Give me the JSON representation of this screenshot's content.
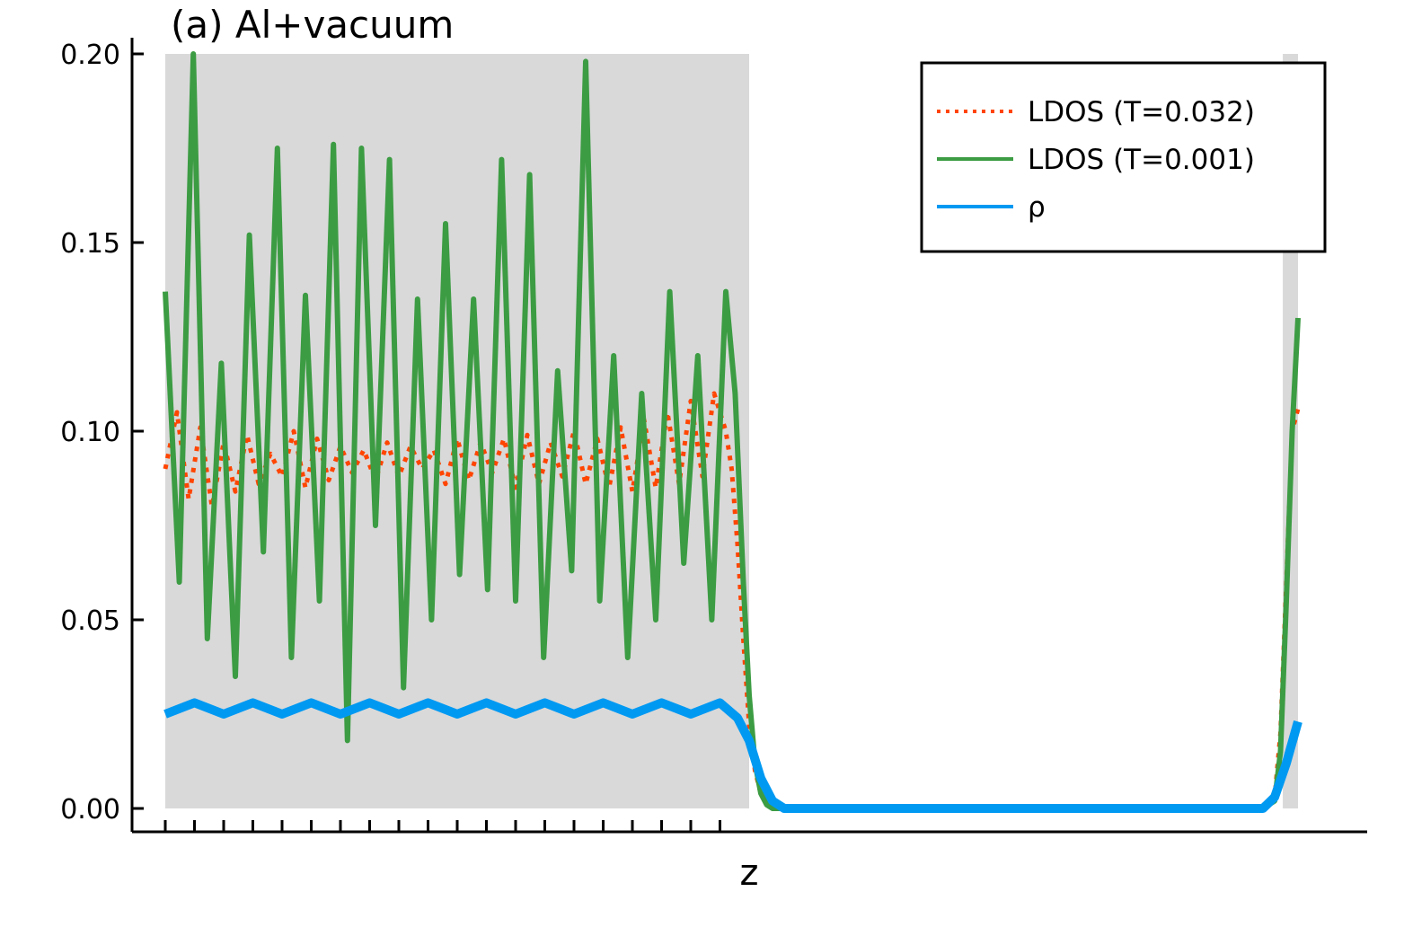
{
  "chart_data": {
    "type": "line",
    "title": "(a) Al+vacuum",
    "xlabel": "z",
    "ylabel": "",
    "xlim": [
      0,
      1.0
    ],
    "ylim": [
      0.0,
      0.2
    ],
    "yticks": [
      "0.00",
      "0.05",
      "0.10",
      "0.15",
      "0.20"
    ],
    "ytick_values": [
      0.0,
      0.05,
      0.1,
      0.15,
      0.2
    ],
    "grid": false,
    "legend_position": "top-right",
    "shaded_regions": [
      {
        "x0": 0.0,
        "x1": 0.5,
        "color": "#d9d9d9"
      },
      {
        "x0": 0.957,
        "x1": 0.97,
        "color": "#d9d9d9"
      }
    ],
    "series": [
      {
        "name": "LDOS (T=0.032)",
        "color": "#ff4500",
        "style": "dotted",
        "x": [
          0.0,
          0.01,
          0.02,
          0.03,
          0.04,
          0.05,
          0.06,
          0.07,
          0.08,
          0.09,
          0.1,
          0.11,
          0.12,
          0.13,
          0.14,
          0.15,
          0.16,
          0.17,
          0.18,
          0.19,
          0.2,
          0.21,
          0.22,
          0.23,
          0.24,
          0.25,
          0.26,
          0.27,
          0.28,
          0.29,
          0.3,
          0.31,
          0.32,
          0.33,
          0.34,
          0.35,
          0.36,
          0.37,
          0.38,
          0.39,
          0.4,
          0.41,
          0.42,
          0.43,
          0.44,
          0.45,
          0.46,
          0.47,
          0.48,
          0.485,
          0.49,
          0.495,
          0.5,
          0.505,
          0.51,
          0.515,
          0.52,
          0.53,
          0.55,
          0.6,
          0.7,
          0.8,
          0.9,
          0.94,
          0.95,
          0.955,
          0.96,
          0.965,
          0.97
        ],
        "y": [
          0.09,
          0.105,
          0.082,
          0.101,
          0.08,
          0.097,
          0.084,
          0.099,
          0.086,
          0.094,
          0.088,
          0.1,
          0.085,
          0.098,
          0.087,
          0.096,
          0.089,
          0.095,
          0.087,
          0.097,
          0.088,
          0.096,
          0.09,
          0.095,
          0.086,
          0.098,
          0.087,
          0.097,
          0.089,
          0.098,
          0.085,
          0.099,
          0.086,
          0.097,
          0.088,
          0.1,
          0.086,
          0.098,
          0.085,
          0.101,
          0.084,
          0.103,
          0.085,
          0.105,
          0.086,
          0.108,
          0.088,
          0.11,
          0.1,
          0.09,
          0.07,
          0.045,
          0.022,
          0.01,
          0.004,
          0.001,
          0.0,
          0.0,
          0.0,
          0.0,
          0.0,
          0.0,
          0.0,
          0.0,
          0.003,
          0.02,
          0.06,
          0.1,
          0.106
        ]
      },
      {
        "name": "LDOS (T=0.001)",
        "color": "#3c9c43",
        "style": "solid",
        "x": [
          0.0,
          0.012,
          0.024,
          0.036,
          0.048,
          0.06,
          0.072,
          0.084,
          0.096,
          0.108,
          0.12,
          0.132,
          0.144,
          0.156,
          0.168,
          0.18,
          0.192,
          0.204,
          0.216,
          0.228,
          0.24,
          0.252,
          0.264,
          0.276,
          0.288,
          0.3,
          0.312,
          0.324,
          0.336,
          0.348,
          0.36,
          0.372,
          0.384,
          0.396,
          0.408,
          0.42,
          0.432,
          0.444,
          0.456,
          0.468,
          0.48,
          0.488,
          0.495,
          0.5,
          0.505,
          0.51,
          0.515,
          0.52,
          0.53,
          0.55,
          0.6,
          0.7,
          0.8,
          0.9,
          0.94,
          0.95,
          0.955,
          0.96,
          0.965,
          0.97
        ],
        "y": [
          0.137,
          0.06,
          0.2,
          0.045,
          0.118,
          0.035,
          0.152,
          0.068,
          0.175,
          0.04,
          0.136,
          0.055,
          0.176,
          0.018,
          0.175,
          0.075,
          0.172,
          0.032,
          0.135,
          0.05,
          0.155,
          0.062,
          0.135,
          0.058,
          0.172,
          0.055,
          0.168,
          0.04,
          0.116,
          0.063,
          0.198,
          0.055,
          0.12,
          0.04,
          0.11,
          0.05,
          0.137,
          0.065,
          0.12,
          0.05,
          0.137,
          0.11,
          0.06,
          0.03,
          0.012,
          0.004,
          0.001,
          0.0,
          0.0,
          0.0,
          0.0,
          0.0,
          0.0,
          0.0,
          0.0,
          0.002,
          0.015,
          0.055,
          0.1,
          0.13
        ]
      },
      {
        "name": "ρ",
        "color": "#0099f2",
        "style": "solid",
        "x": [
          0.0,
          0.025,
          0.05,
          0.075,
          0.1,
          0.125,
          0.15,
          0.175,
          0.2,
          0.225,
          0.25,
          0.275,
          0.3,
          0.325,
          0.35,
          0.375,
          0.4,
          0.425,
          0.45,
          0.475,
          0.49,
          0.5,
          0.51,
          0.52,
          0.53,
          0.55,
          0.6,
          0.7,
          0.8,
          0.9,
          0.93,
          0.94,
          0.95,
          0.96,
          0.97
        ],
        "y": [
          0.025,
          0.028,
          0.025,
          0.028,
          0.025,
          0.028,
          0.025,
          0.028,
          0.025,
          0.028,
          0.025,
          0.028,
          0.025,
          0.028,
          0.025,
          0.028,
          0.025,
          0.028,
          0.025,
          0.028,
          0.024,
          0.018,
          0.008,
          0.002,
          0.0,
          0.0,
          0.0,
          0.0,
          0.0,
          0.0,
          0.0,
          0.0,
          0.003,
          0.012,
          0.023
        ]
      }
    ]
  }
}
